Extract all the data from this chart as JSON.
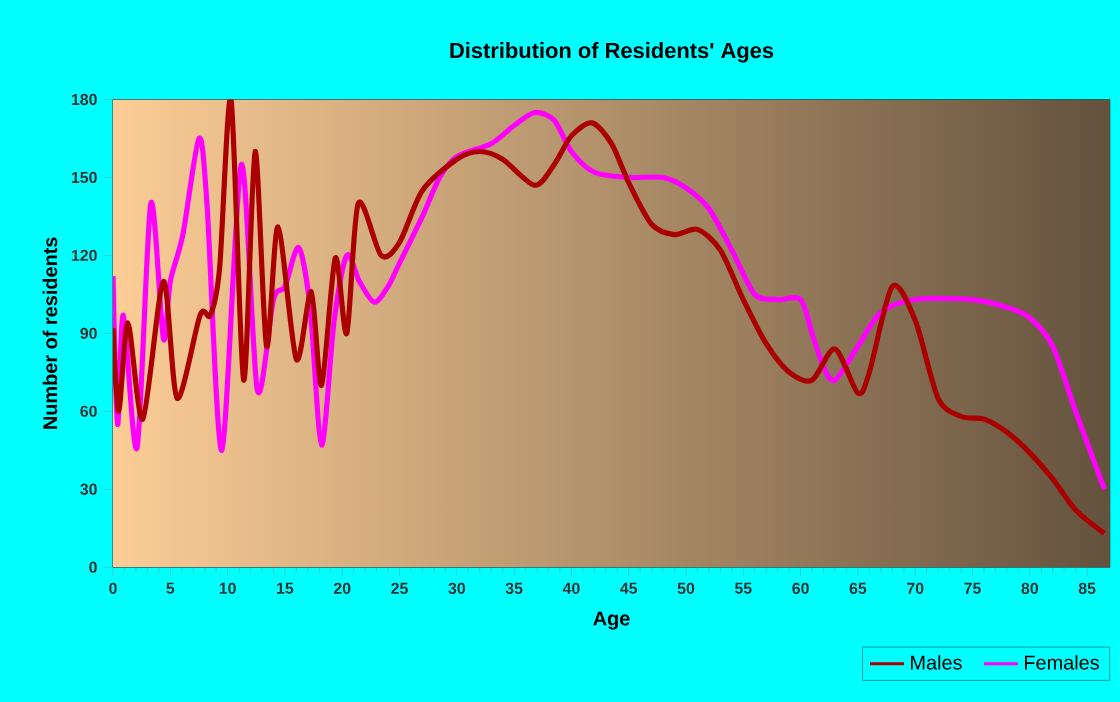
{
  "chart_data": {
    "type": "line",
    "title": "Distribution of Residents' Ages",
    "xlabel": "Age",
    "ylabel": "Number of residents",
    "xlim": [
      0,
      87
    ],
    "ylim": [
      0,
      180
    ],
    "xticks": [
      0,
      5,
      10,
      15,
      20,
      25,
      30,
      35,
      40,
      45,
      50,
      55,
      60,
      65,
      70,
      75,
      80,
      85
    ],
    "yticks": [
      0,
      30,
      60,
      90,
      120,
      150,
      180
    ],
    "grid": true,
    "legend": "bottom right",
    "marker": "none",
    "line_style": "solid",
    "series": [
      {
        "name": "Males",
        "color": "#aa0000",
        "x": [
          0,
          0.5,
          1.3,
          2.6,
          4.4,
          5.6,
          7.6,
          8.5,
          9.3,
          10.3,
          11.4,
          12.4,
          13.4,
          14.4,
          16,
          17.3,
          18.2,
          19.4,
          20.4,
          21.4,
          23.4,
          25,
          27,
          30,
          32,
          34,
          36.8,
          38.5,
          40,
          41.8,
          43.5,
          45,
          47,
          49,
          51,
          53,
          55,
          57,
          59,
          61,
          63,
          65,
          66,
          68,
          70,
          72,
          74,
          76,
          78,
          80,
          82,
          84,
          86.5
        ],
        "values": [
          92,
          60,
          94,
          57,
          110,
          65,
          97,
          97,
          115,
          180,
          72,
          160,
          85,
          131,
          80,
          106,
          70,
          119,
          90,
          140,
          120,
          125,
          145,
          157,
          160,
          157,
          147,
          155,
          166,
          171,
          163,
          148,
          132,
          128,
          130,
          122,
          103,
          86,
          75,
          72,
          84,
          67,
          75,
          108,
          95,
          65,
          58,
          57,
          52,
          44,
          34,
          22,
          13
        ]
      },
      {
        "name": "Females",
        "color": "#ff00ff",
        "x": [
          0,
          0.4,
          0.9,
          2.1,
          3.3,
          4.4,
          5,
          6.1,
          7.5,
          8.2,
          9.5,
          11.2,
          12.6,
          14,
          15,
          16.2,
          17.2,
          18.2,
          19.3,
          20.4,
          21.5,
          22.8,
          24,
          25,
          27,
          28.5,
          30,
          33,
          35,
          36.8,
          38.5,
          40,
          42,
          45,
          48,
          50,
          52,
          54,
          56,
          58,
          60,
          61,
          62,
          63,
          65,
          67,
          70,
          75,
          78,
          80,
          82,
          84,
          86.5
        ],
        "values": [
          112,
          55,
          97,
          46,
          140,
          88,
          110,
          128,
          165,
          140,
          45,
          155,
          68,
          103,
          108,
          123,
          100,
          47,
          95,
          120,
          110,
          102,
          108,
          117,
          135,
          150,
          158,
          163,
          170,
          175,
          172,
          160,
          152,
          150,
          150,
          146,
          138,
          122,
          105,
          103,
          103,
          90,
          77,
          72,
          85,
          98,
          103,
          103,
          100,
          96,
          85,
          60,
          30
        ]
      }
    ]
  }
}
